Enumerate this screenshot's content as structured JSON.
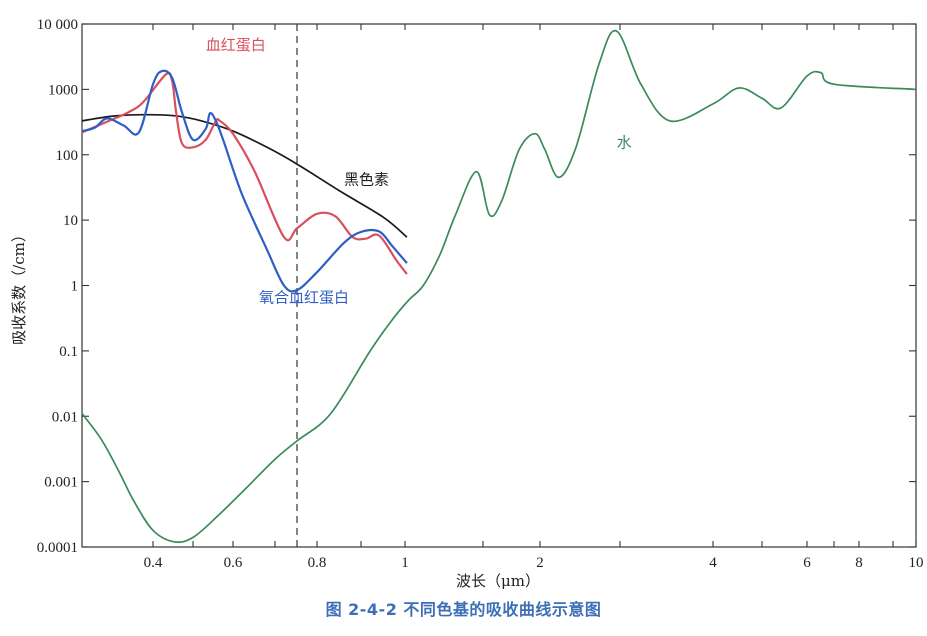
{
  "caption": "图 2-4-2   不同色基的吸收曲线示意图",
  "chart_data": {
    "type": "line",
    "title": "图 2-4-2 不同色基的吸收曲线示意图",
    "xlabel": "波长（μm）",
    "ylabel": "吸收系数（/cm）",
    "xscale": "log",
    "yscale": "log",
    "xlim": [
      0.27,
      10
    ],
    "ylim": [
      0.0001,
      10000
    ],
    "grid": false,
    "legend": "inline labels",
    "x_ticks": [
      {
        "v": 0.4,
        "label": "0.4"
      },
      {
        "v": 0.5,
        "label": ""
      },
      {
        "v": 0.6,
        "label": "0.6"
      },
      {
        "v": 0.7,
        "label": ""
      },
      {
        "v": 0.8,
        "label": "0.8"
      },
      {
        "v": 0.9,
        "label": ""
      },
      {
        "v": 1,
        "label": "1"
      },
      {
        "v": 1.5,
        "label": ""
      },
      {
        "v": 2,
        "label": "2"
      },
      {
        "v": 3,
        "label": ""
      },
      {
        "v": 4,
        "label": "4"
      },
      {
        "v": 5,
        "label": ""
      },
      {
        "v": 6,
        "label": "6"
      },
      {
        "v": 7,
        "label": ""
      },
      {
        "v": 8,
        "label": "8"
      },
      {
        "v": 9,
        "label": ""
      },
      {
        "v": 10,
        "label": "10"
      }
    ],
    "y_ticks": [
      {
        "v": 10000,
        "label": "10 000"
      },
      {
        "v": 1000,
        "label": "1000"
      },
      {
        "v": 100,
        "label": "100"
      },
      {
        "v": 10,
        "label": "10"
      },
      {
        "v": 1,
        "label": "1"
      },
      {
        "v": 0.1,
        "label": "0.1"
      },
      {
        "v": 0.01,
        "label": "0.01"
      },
      {
        "v": 0.001,
        "label": "0.001"
      },
      {
        "v": 0.0001,
        "label": "0.0001"
      }
    ],
    "reference_line": {
      "x": 0.75,
      "style": "dashed",
      "color": "#333333"
    },
    "series": [
      {
        "name": "血红蛋白",
        "color": "#d9505c",
        "label_pos": {
          "x": 0.53,
          "y": 4000
        },
        "x": [
          0.27,
          0.31,
          0.35,
          0.38,
          0.43,
          0.445,
          0.455,
          0.47,
          0.5,
          0.53,
          0.555,
          0.565,
          0.6,
          0.65,
          0.72,
          0.75,
          0.8,
          0.84,
          0.88,
          0.91,
          0.94,
          0.98,
          1.01
        ],
        "y": [
          220,
          320,
          450,
          650,
          1700,
          1350,
          450,
          150,
          130,
          170,
          330,
          330,
          210,
          55,
          5.5,
          7.5,
          12.5,
          11.5,
          5.5,
          5.2,
          5.8,
          2.4,
          1.5
        ]
      },
      {
        "name": "氧合血红蛋白",
        "color": "#2f5fc4",
        "label_pos": {
          "x": 0.66,
          "y": 0.55
        },
        "x": [
          0.27,
          0.29,
          0.31,
          0.34,
          0.37,
          0.4,
          0.42,
          0.445,
          0.47,
          0.5,
          0.53,
          0.54,
          0.555,
          0.575,
          0.62,
          0.68,
          0.72,
          0.75,
          0.8,
          0.86,
          0.9,
          0.94,
          0.97,
          1.01
        ],
        "y": [
          230,
          260,
          360,
          280,
          220,
          1200,
          1900,
          1500,
          450,
          170,
          250,
          430,
          330,
          160,
          25,
          3.5,
          1.0,
          0.85,
          1.6,
          4.5,
          6.6,
          6.7,
          4.0,
          2.2
        ]
      },
      {
        "name": "黑色素",
        "color": "#1a1a1a",
        "label_pos": {
          "x": 0.86,
          "y": 35
        },
        "x": [
          0.27,
          0.32,
          0.38,
          0.45,
          0.52,
          0.6,
          0.68,
          0.75,
          0.85,
          0.95,
          1.01
        ],
        "y": [
          330,
          390,
          410,
          395,
          330,
          230,
          130,
          72,
          28,
          11,
          5.5
        ]
      },
      {
        "name": "水",
        "color": "#3a8a5a",
        "label_pos": {
          "x": 2.95,
          "y": 130
        },
        "x": [
          0.27,
          0.3,
          0.33,
          0.36,
          0.4,
          0.45,
          0.5,
          0.56,
          0.63,
          0.7,
          0.75,
          0.83,
          0.92,
          0.97,
          1.02,
          1.1,
          1.2,
          1.3,
          1.45,
          1.55,
          1.65,
          1.8,
          1.95,
          2.05,
          2.2,
          2.4,
          2.7,
          2.95,
          3.2,
          3.5,
          4.0,
          4.5,
          5.0,
          5.4,
          6.0,
          6.5,
          7.0,
          10.0
        ],
        "y": [
          0.011,
          0.0045,
          0.0015,
          0.0005,
          0.00018,
          0.00012,
          0.00014,
          0.0003,
          0.0008,
          0.0022,
          0.0042,
          0.011,
          0.1,
          0.3,
          0.6,
          1.0,
          3.0,
          12,
          55,
          12,
          20,
          120,
          210,
          120,
          45,
          130,
          2500,
          7800,
          1200,
          330,
          600,
          1050,
          730,
          520,
          1600,
          1800,
          1200,
          1000
        ]
      }
    ]
  }
}
